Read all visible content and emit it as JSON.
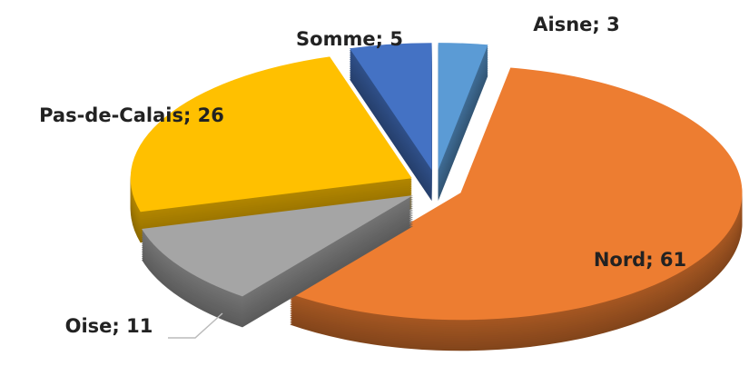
{
  "chart_data": {
    "type": "pie",
    "categories": [
      "Aisne",
      "Nord",
      "Oise",
      "Pas-de-Calais",
      "Somme"
    ],
    "values": [
      3,
      61,
      11,
      26,
      5
    ],
    "value_labels": [
      "Aisne; 3",
      "Nord; 61",
      "Oise; 11",
      "Pas-de-Calais; 26",
      "Somme; 5"
    ],
    "colors": [
      "#5b9bd5",
      "#ed7d31",
      "#a5a5a5",
      "#ffc000",
      "#4472c4"
    ]
  }
}
